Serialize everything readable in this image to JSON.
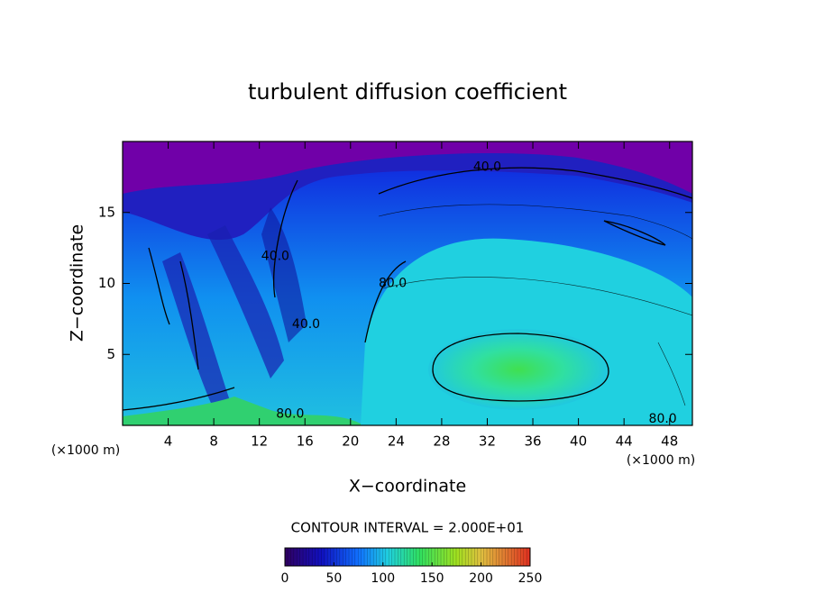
{
  "chart_data": {
    "type": "contour",
    "title": "turbulent diffusion coefficient",
    "xlabel": "X−coordinate",
    "ylabel": "Z−coordinate",
    "x_unit": "(×1000 m)",
    "y_unit": "(×1000 m)",
    "xlim": [
      0,
      50
    ],
    "xticks": [
      4,
      8,
      12,
      16,
      20,
      24,
      28,
      32,
      36,
      40,
      44,
      48
    ],
    "ylim": [
      0,
      20
    ],
    "yticks": [
      5,
      10,
      15
    ],
    "contour_interval": "CONTOUR INTERVAL = 2.000E+01",
    "contour_labels": [
      {
        "x": 32,
        "z": 18.2,
        "value": 40,
        "label": "40.0"
      },
      {
        "x": 13.4,
        "z": 11.9,
        "value": 40,
        "label": "40.0"
      },
      {
        "x": 16.1,
        "z": 7.1,
        "value": 40,
        "label": "40.0"
      },
      {
        "x": 23.7,
        "z": 10,
        "value": 80,
        "label": "80.0"
      },
      {
        "x": 14.7,
        "z": 0.8,
        "value": 80,
        "label": "80.0"
      },
      {
        "x": 47.4,
        "z": 0.45,
        "value": 80,
        "label": "80.0"
      }
    ],
    "colorbar": {
      "lim": [
        0,
        250
      ],
      "ticks": [
        0,
        50,
        100,
        150,
        200,
        250
      ]
    }
  }
}
